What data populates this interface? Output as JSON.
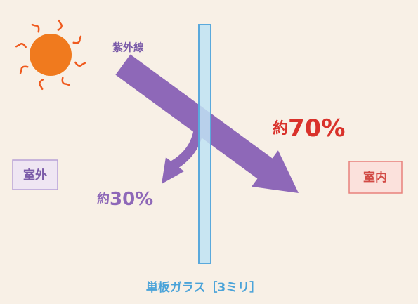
{
  "labels": {
    "uv": "紫外線",
    "outdoor": "室外",
    "indoor": "室内",
    "glass": "単板ガラス［3ミリ］"
  },
  "transmitted": {
    "prefix": "約",
    "amount": "70%"
  },
  "reflected": {
    "prefix": "約",
    "amount": "30%"
  }
}
